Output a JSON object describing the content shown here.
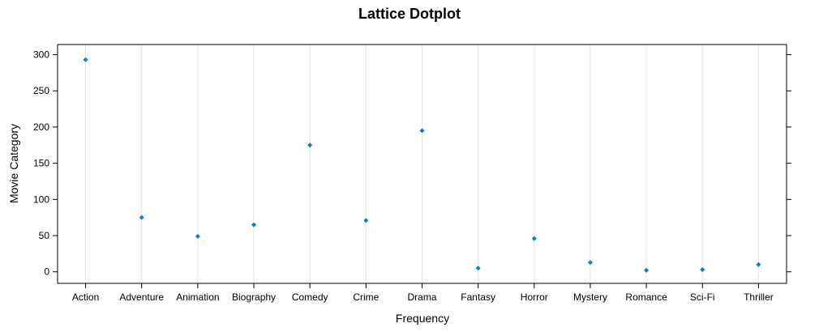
{
  "chart_data": {
    "type": "scatter",
    "title": "Lattice Dotplot",
    "xlabel": "Frequency",
    "ylabel": "Movie Category",
    "categories": [
      "Action",
      "Adventure",
      "Animation",
      "Biography",
      "Comedy",
      "Crime",
      "Drama",
      "Fantasy",
      "Horror",
      "Mystery",
      "Romance",
      "Sci-Fi",
      "Thriller"
    ],
    "values": [
      293,
      75,
      49,
      65,
      175,
      71,
      195,
      5,
      46,
      13,
      2,
      3,
      10
    ],
    "ylim": [
      -16,
      314
    ],
    "yticks": [
      0,
      50,
      100,
      150,
      200,
      250,
      300
    ],
    "grid": "vertical",
    "marker_color": "#0080d0"
  }
}
